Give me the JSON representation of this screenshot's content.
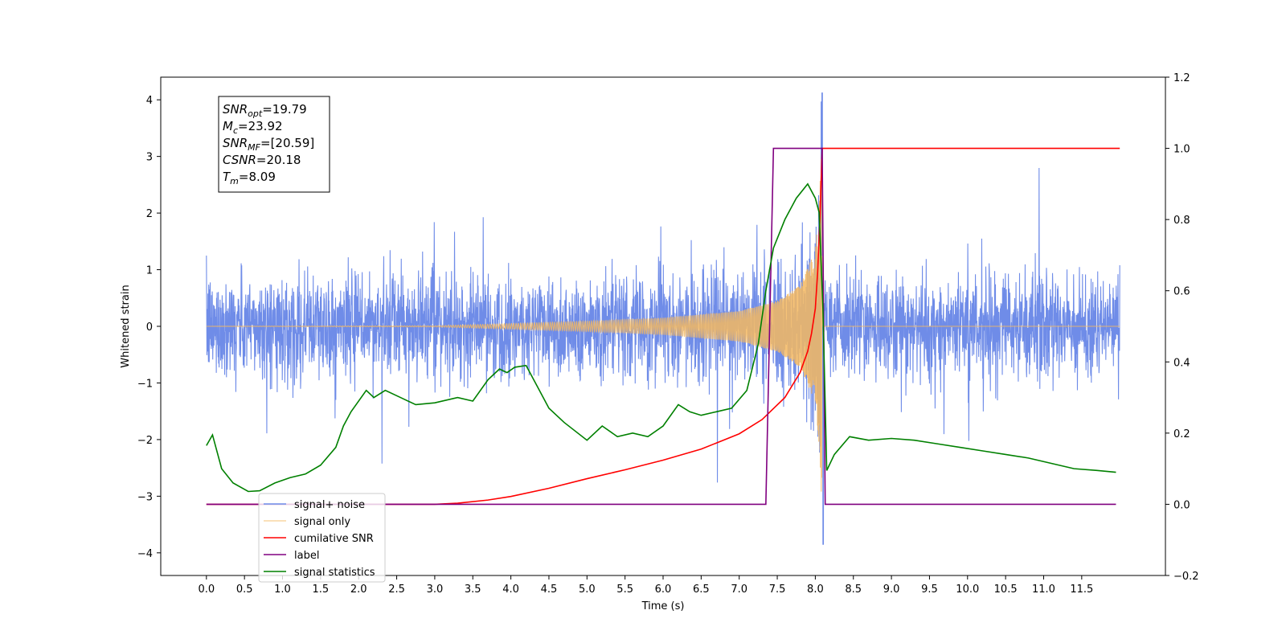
{
  "chart_data": {
    "type": "line",
    "title": "",
    "xlabel": "Time (s)",
    "ylabel": "Whitened strain",
    "xlim": [
      -0.6,
      12.6
    ],
    "ylim": [
      -4.4,
      4.4
    ],
    "ylim_right": [
      -0.2,
      1.2
    ],
    "x_ticks": [
      0.0,
      0.5,
      1.0,
      1.5,
      2.0,
      2.5,
      3.0,
      3.5,
      4.0,
      4.5,
      5.0,
      5.5,
      6.0,
      6.5,
      7.0,
      7.5,
      8.0,
      8.5,
      9.0,
      9.5,
      10.0,
      10.5,
      11.0,
      11.5
    ],
    "x_tick_labels": [
      "0.0",
      "0.5",
      "1.0",
      "1.5",
      "2.0",
      "2.5",
      "3.0",
      "3.5",
      "4.0",
      "4.5",
      "5.0",
      "5.5",
      "6.0",
      "6.5",
      "7.0",
      "7.5",
      "8.0",
      "8.5",
      "9.0",
      "9.5",
      "10.0",
      "10.5",
      "11.0",
      "11.5"
    ],
    "y_ticks": [
      4,
      3,
      2,
      1,
      0,
      -1,
      -2,
      -3,
      -4
    ],
    "y_tick_labels": [
      "4",
      "3",
      "2",
      "1",
      "0",
      "−1",
      "−2",
      "−3",
      "−4"
    ],
    "y_right_ticks": [
      1.2,
      1.0,
      0.8,
      0.6,
      0.4,
      0.2,
      0.0,
      -0.2
    ],
    "y_right_tick_labels": [
      "1.2",
      "1.0",
      "0.8",
      "0.6",
      "0.4",
      "0.2",
      "0.0",
      "−0.2"
    ],
    "grid": false,
    "legend_position": "lower-left",
    "series": [
      {
        "name": "signal+ noise",
        "axis": "left",
        "color": "#6f8ce8",
        "description_values": "gaussian noise of sd ~0.45 between x=0 and x=12, with chirp added; peak ~4.1 near x=8.09, trough ~-3.85 near x=8.1"
      },
      {
        "name": "signal only",
        "axis": "left",
        "color": "#f5b860",
        "envelope": {
          "x": [
            0.0,
            3.0,
            4.0,
            5.0,
            6.0,
            7.0,
            7.5,
            7.8,
            8.0,
            8.05,
            8.09,
            8.1,
            12.0
          ],
          "amplitude": [
            0.0,
            0.01,
            0.05,
            0.09,
            0.15,
            0.27,
            0.45,
            0.72,
            1.35,
            2.1,
            3.45,
            0.0,
            0.0
          ]
        }
      },
      {
        "name": "cumilative SNR",
        "axis": "right",
        "color": "#ff0000",
        "x": [
          0.0,
          3.0,
          3.3,
          3.7,
          4.0,
          4.5,
          5.0,
          5.5,
          6.0,
          6.5,
          7.0,
          7.3,
          7.6,
          7.8,
          7.9,
          7.95,
          8.0,
          8.03,
          8.06,
          8.09,
          8.5,
          9.0,
          10.0,
          11.0,
          11.5,
          12.0
        ],
        "values": [
          0.0,
          0.0,
          0.003,
          0.012,
          0.022,
          0.045,
          0.072,
          0.097,
          0.124,
          0.155,
          0.198,
          0.238,
          0.3,
          0.37,
          0.43,
          0.48,
          0.55,
          0.65,
          0.8,
          1.0,
          1.0,
          1.0,
          1.0,
          1.0,
          1.0,
          1.0
        ]
      },
      {
        "name": "label",
        "axis": "right",
        "color": "#800080",
        "x": [
          0.0,
          7.35,
          7.45,
          8.09,
          8.13,
          11.95
        ],
        "values": [
          0.0,
          0.0,
          1.0,
          1.0,
          0.0,
          0.0
        ]
      },
      {
        "name": "signal statistics",
        "axis": "right",
        "color": "#008000",
        "x": [
          0.0,
          0.08,
          0.2,
          0.35,
          0.55,
          0.7,
          0.9,
          1.1,
          1.3,
          1.5,
          1.7,
          1.8,
          1.9,
          2.1,
          2.2,
          2.35,
          2.55,
          2.75,
          3.0,
          3.3,
          3.5,
          3.7,
          3.85,
          3.95,
          4.05,
          4.2,
          4.35,
          4.5,
          4.7,
          5.0,
          5.2,
          5.4,
          5.6,
          5.8,
          6.0,
          6.2,
          6.35,
          6.5,
          6.7,
          6.9,
          7.1,
          7.25,
          7.35,
          7.45,
          7.6,
          7.75,
          7.9,
          8.0,
          8.05,
          8.1,
          8.15,
          8.25,
          8.45,
          8.7,
          9.0,
          9.3,
          9.6,
          9.9,
          10.2,
          10.5,
          10.8,
          11.1,
          11.4,
          11.7,
          11.95
        ],
        "values": [
          0.165,
          0.195,
          0.1,
          0.06,
          0.036,
          0.038,
          0.06,
          0.075,
          0.085,
          0.11,
          0.16,
          0.22,
          0.26,
          0.32,
          0.3,
          0.32,
          0.3,
          0.28,
          0.285,
          0.3,
          0.29,
          0.35,
          0.38,
          0.37,
          0.385,
          0.39,
          0.33,
          0.27,
          0.23,
          0.18,
          0.22,
          0.19,
          0.2,
          0.19,
          0.22,
          0.28,
          0.26,
          0.25,
          0.26,
          0.27,
          0.32,
          0.45,
          0.6,
          0.72,
          0.8,
          0.86,
          0.9,
          0.86,
          0.82,
          0.55,
          0.095,
          0.14,
          0.19,
          0.18,
          0.185,
          0.18,
          0.17,
          0.16,
          0.15,
          0.14,
          0.13,
          0.115,
          0.1,
          0.095,
          0.09
        ]
      }
    ]
  },
  "info_box": {
    "lines": [
      {
        "main": "SNR",
        "sub": "opt",
        "rest": "=19.79"
      },
      {
        "main": "M",
        "sub": "c",
        "rest": "=23.92"
      },
      {
        "main": "SNR",
        "sub": "MF",
        "rest": "=[20.59]"
      },
      {
        "main": "CSNR",
        "sub": "",
        "rest": "=20.18"
      },
      {
        "main": "T",
        "sub": "m",
        "rest": "=8.09"
      }
    ]
  }
}
